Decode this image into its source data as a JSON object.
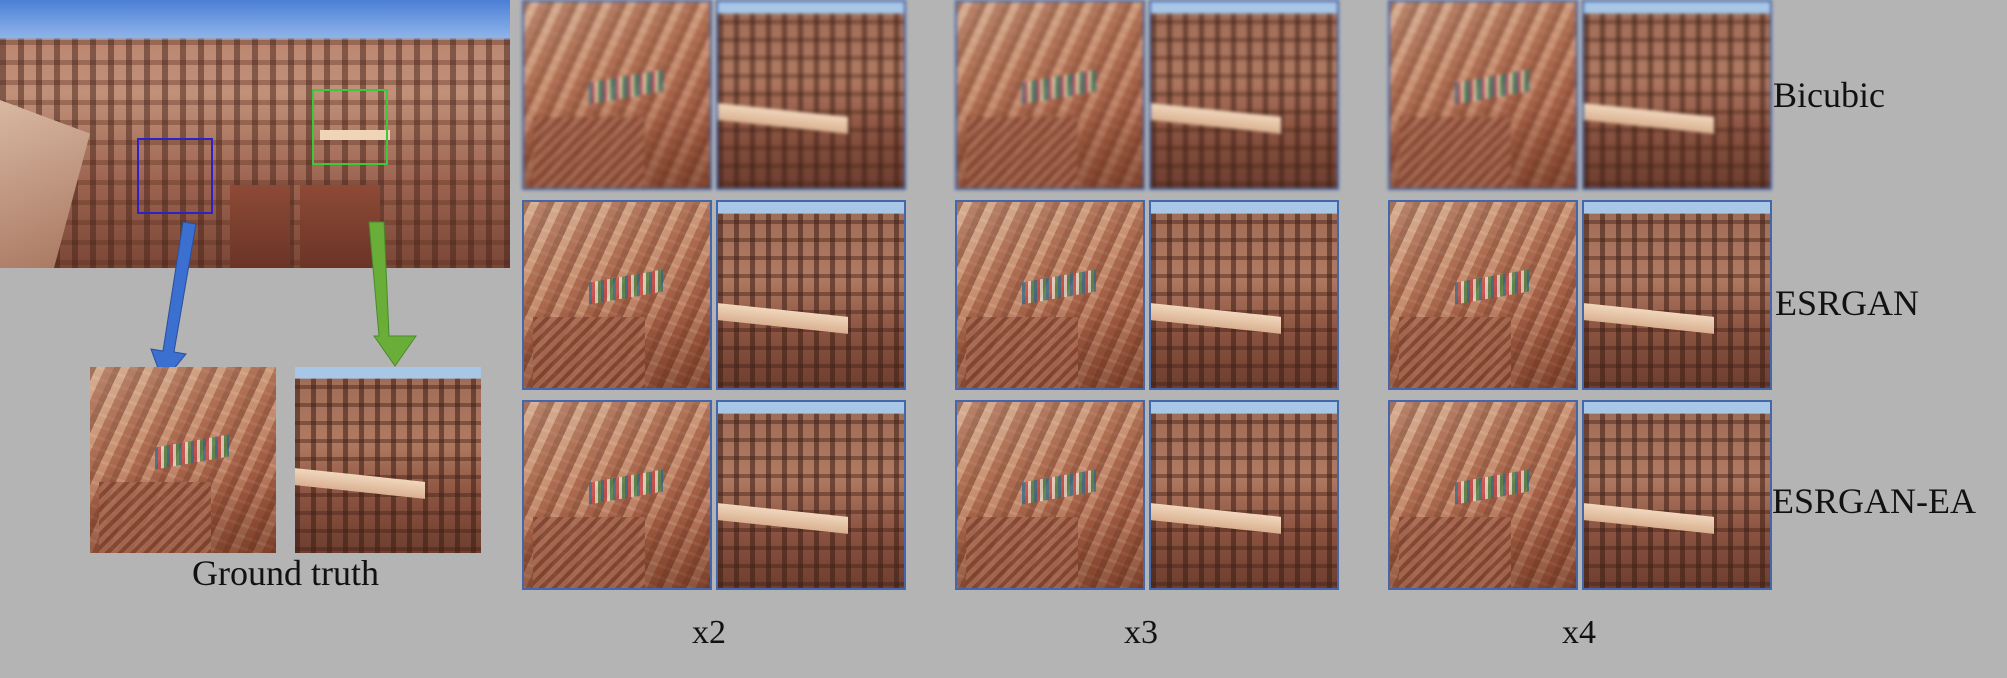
{
  "figure": {
    "row_labels": [
      "Bicubic",
      "ESRGAN",
      "ESRGAN-EA"
    ],
    "scale_labels": [
      "x2",
      "x3",
      "x4"
    ],
    "ground_truth_label": "Ground truth",
    "colors": {
      "background": "#b4b4b4",
      "blue_box": "#2b23c8",
      "green_box": "#3cc83c",
      "blue_arrow": "#3b6fd0",
      "green_arrow": "#6aae3a",
      "crop_frame": "#4466aa"
    }
  }
}
